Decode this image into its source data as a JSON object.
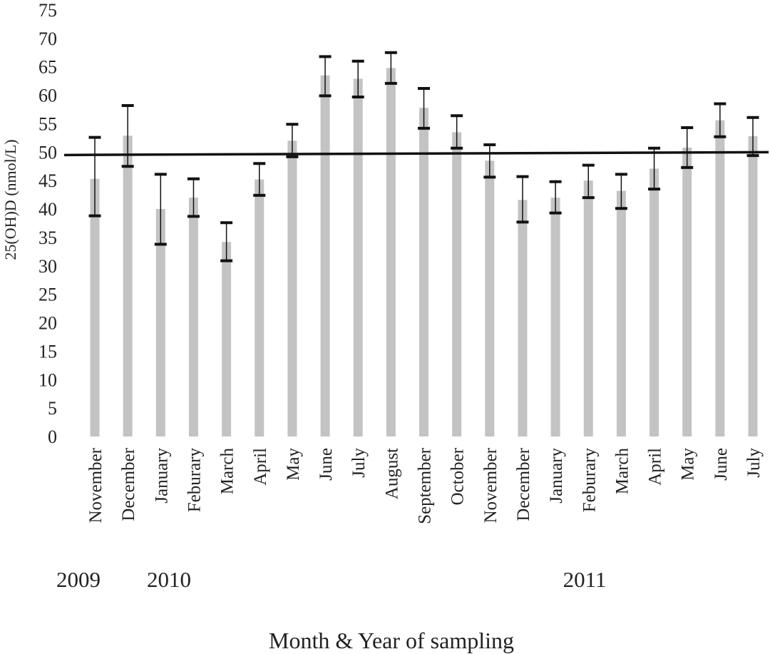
{
  "chart_data": {
    "type": "bar",
    "title": "",
    "xlabel": "Month & Year of sampling",
    "ylabel": "25(OH)D (nmol/L)",
    "ylim": [
      0,
      75
    ],
    "yticks": [
      0,
      5,
      10,
      15,
      20,
      25,
      30,
      35,
      40,
      45,
      50,
      55,
      60,
      65,
      70,
      75
    ],
    "categories": [
      "November",
      "December",
      "January",
      "Feburary",
      "March",
      "April",
      "May",
      "June",
      "July",
      "August",
      "September",
      "October",
      "November",
      "December",
      "January",
      "Feburary",
      "March",
      "April",
      "May",
      "June",
      "July"
    ],
    "values": [
      45.3,
      52.9,
      40.0,
      42.0,
      34.2,
      45.2,
      52.0,
      63.5,
      62.9,
      64.8,
      57.8,
      53.5,
      48.5,
      41.6,
      42.0,
      45.0,
      43.2,
      47.1,
      50.8,
      55.6,
      52.8
    ],
    "error_upper": [
      52.6,
      58.2,
      46.1,
      45.3,
      37.6,
      48.0,
      54.9,
      66.8,
      66.0,
      67.5,
      61.2,
      56.4,
      51.3,
      45.7,
      44.8,
      47.7,
      46.1,
      50.7,
      54.3,
      58.5,
      56.1
    ],
    "error_lower": [
      38.8,
      47.5,
      33.8,
      38.7,
      30.9,
      42.4,
      49.2,
      59.9,
      59.7,
      62.1,
      54.2,
      50.7,
      45.6,
      37.7,
      39.3,
      42.0,
      40.1,
      43.5,
      47.3,
      52.7,
      49.4
    ],
    "reference_line": {
      "y_start": 49.5,
      "y_end": 50.0
    },
    "year_labels": [
      {
        "text": "2009",
        "category_index": 0
      },
      {
        "text": "2010",
        "category_index": 2
      },
      {
        "text": "2011",
        "category_index": 15
      }
    ],
    "grid": false,
    "legend": "none",
    "colors": {
      "bar": "#c3c3c3",
      "error": "#111111",
      "reference": "#111111"
    }
  }
}
